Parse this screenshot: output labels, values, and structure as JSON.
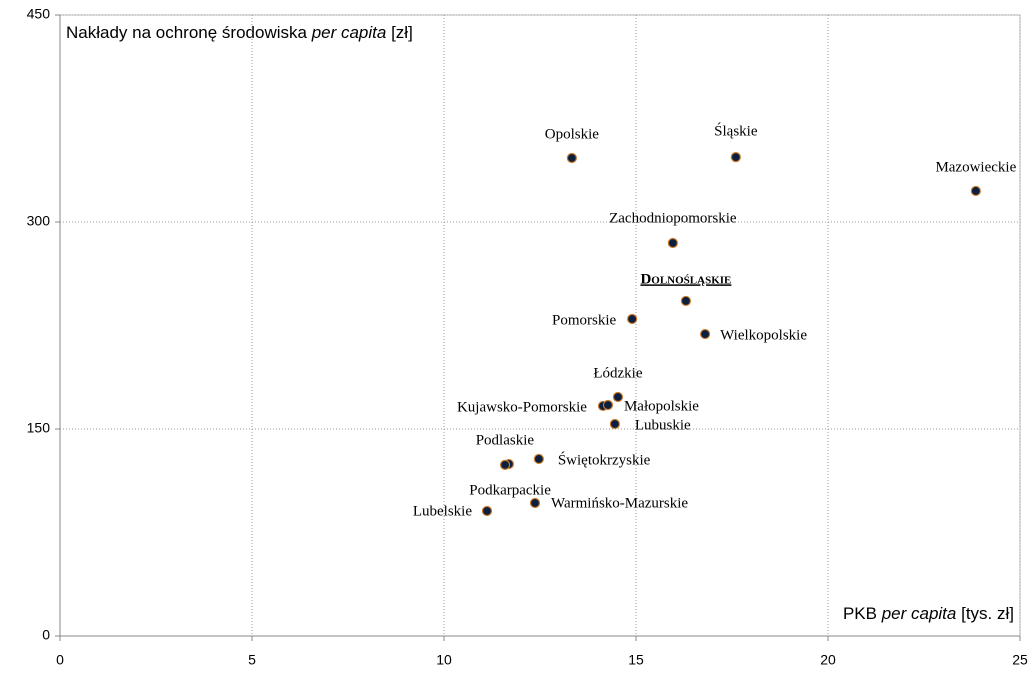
{
  "chart_data": {
    "type": "scatter",
    "ylabel": [
      "Nakłady na ochronę środowiska ",
      "per capita",
      " [zł]"
    ],
    "xlabel": [
      "PKB ",
      "per capita",
      " [tys. zł]"
    ],
    "xlim": [
      0,
      25
    ],
    "xticks": [
      0,
      5,
      10,
      15,
      20,
      25
    ],
    "ylim": [
      0,
      450
    ],
    "yticks": [
      0,
      150,
      300,
      450
    ],
    "grid": true,
    "color": "#0b1f3f",
    "edge_color": "#c8782a",
    "highlight": "Dolnośląskie",
    "labels": [
      "Opolskie",
      "Śląskie",
      "Mazowieckie",
      "Zachodniopomorskie",
      "Dolnośląskie",
      "Pomorskie",
      "Wielkopolskie",
      "Łódzkie",
      "Kujawsko-Pomorskie",
      "Małopolskie",
      "Lubuskie",
      "Podlaskie",
      "Świętokrzyskie",
      "Podkarpackie",
      "Lubelskie",
      "Warmińsko-Mazurskie"
    ],
    "x": [
      13.33,
      17.6,
      23.85,
      15.96,
      16.3,
      14.9,
      16.8,
      14.53,
      14.14,
      14.27,
      14.45,
      11.69,
      12.47,
      11.59,
      11.12,
      12.37
    ],
    "y": [
      346.4,
      347,
      322.5,
      284.8,
      242.8,
      229.7,
      218.8,
      173.2,
      166.7,
      167.4,
      153.6,
      124.6,
      128.3,
      124,
      90.6,
      96.4
    ]
  }
}
